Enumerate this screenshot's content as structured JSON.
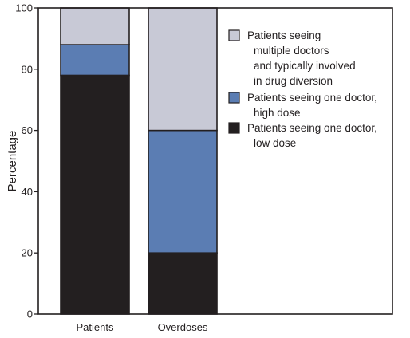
{
  "chart_data": {
    "type": "bar",
    "stacked": true,
    "percent": true,
    "ylabel": "Percentage",
    "xlabel": "",
    "ylim": [
      0,
      100
    ],
    "yticks": [
      0,
      20,
      40,
      60,
      80,
      100
    ],
    "categories": [
      "Patients",
      "Overdoses"
    ],
    "series": [
      {
        "name": "Patients seeing one doctor, low dose",
        "values": [
          78,
          20
        ],
        "color": "#231f20"
      },
      {
        "name": "Patients seeing one doctor, high dose",
        "values": [
          10,
          40
        ],
        "color": "#5b7db3"
      },
      {
        "name": "Patients seeing multiple doctors and typically involved in drug diversion",
        "values": [
          12,
          40
        ],
        "color": "#c8c9d6"
      }
    ],
    "legend": {
      "placement": "top-right",
      "entries": [
        {
          "series": 2,
          "lines": [
            "Patients seeing",
            "multiple doctors",
            "and typically involved",
            "in drug diversion"
          ]
        },
        {
          "series": 1,
          "lines": [
            "Patients seeing one doctor,",
            "high dose"
          ]
        },
        {
          "series": 0,
          "lines": [
            "Patients seeing one doctor,",
            "low dose"
          ]
        }
      ]
    },
    "grid": false
  }
}
